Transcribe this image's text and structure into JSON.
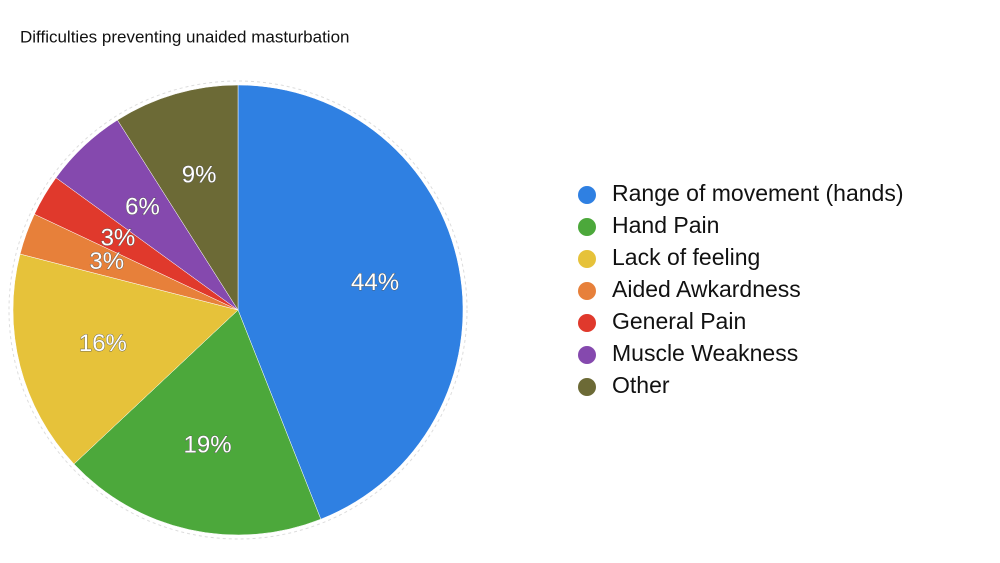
{
  "chart_data": {
    "type": "pie",
    "title": "Difficulties preventing unaided masturbation",
    "categories": [
      "Range of movement (hands)",
      "Hand Pain",
      "Lack of feeling",
      "Aided Awkardness",
      "General Pain",
      "Muscle Weakness",
      "Other"
    ],
    "values": [
      44,
      19,
      16,
      3,
      3,
      6,
      9
    ],
    "value_labels": [
      "44%",
      "19%",
      "16%",
      "3%",
      "3%",
      "6%",
      "9%"
    ],
    "colors": [
      "#2f80e2",
      "#4ca83b",
      "#e6c23a",
      "#e7803a",
      "#e0392c",
      "#8549ae",
      "#6c6a36"
    ],
    "legend": "right"
  }
}
